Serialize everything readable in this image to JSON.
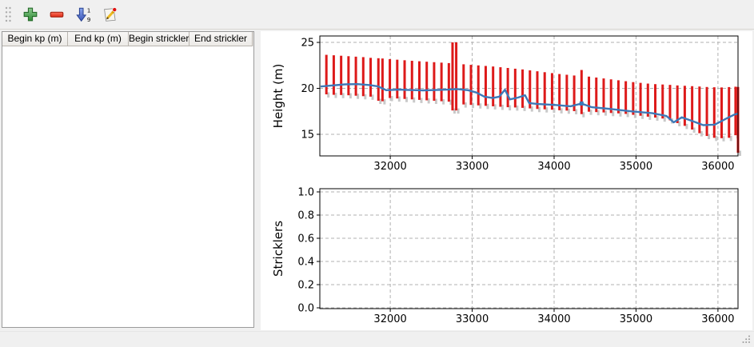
{
  "window": {
    "bg": "#f0f0f0"
  },
  "toolbar": {
    "buttons": [
      {
        "id": "add-row",
        "icon": "plus-icon"
      },
      {
        "id": "remove-row",
        "icon": "minus-icon"
      },
      {
        "id": "sort-rows",
        "icon": "sort-numeric-icon"
      },
      {
        "id": "edit-row",
        "icon": "edit-icon"
      }
    ]
  },
  "table": {
    "columns": [
      "Begin kp (m)",
      "End kp (m)",
      "Begin strickler",
      "End strickler"
    ],
    "rows": []
  },
  "colors": {
    "bar_red": "#dd1a1a",
    "bar_shadow": "#c9c9c9",
    "line_blue": "#3d79b8",
    "grid_gray": "#b0b0b0",
    "icon_green": "#3f9a43",
    "icon_red": "#ee4433",
    "icon_blue": "#4a6fd4",
    "icon_yellow": "#eebb22"
  },
  "chart_data": [
    {
      "type": "bar",
      "title": "",
      "xlabel": "",
      "ylabel": "Height (m)",
      "xlim": [
        31140,
        36245
      ],
      "ylim": [
        12.65,
        25.7
      ],
      "xticks": [
        32000,
        33000,
        34000,
        35000,
        36000
      ],
      "xtick_labels": [
        "32000",
        "33000",
        "34000",
        "35000",
        "36000"
      ],
      "yticks": [
        15,
        20,
        25
      ],
      "ytick_labels": [
        "15",
        "20",
        "25"
      ],
      "grid": true,
      "legend": null,
      "bar_color": "#dd1a1a",
      "shadow_color": "#c9c9c9",
      "line_color": "#3d79b8",
      "bars": [
        [
          31220,
          19.35,
          23.65
        ],
        [
          31310,
          19.3,
          23.6
        ],
        [
          31400,
          19.28,
          23.55
        ],
        [
          31490,
          19.25,
          23.5
        ],
        [
          31580,
          19.2,
          23.45
        ],
        [
          31670,
          19.15,
          23.4
        ],
        [
          31760,
          19.1,
          23.32
        ],
        [
          31855,
          18.65,
          23.28
        ],
        [
          31905,
          18.6,
          23.25
        ],
        [
          31995,
          18.95,
          23.18
        ],
        [
          32085,
          18.9,
          23.12
        ],
        [
          32175,
          18.85,
          23.06
        ],
        [
          32265,
          18.8,
          23.0
        ],
        [
          32355,
          18.75,
          22.95
        ],
        [
          32445,
          18.7,
          22.9
        ],
        [
          32535,
          18.65,
          22.85
        ],
        [
          32625,
          18.6,
          22.8
        ],
        [
          32715,
          18.55,
          22.75
        ],
        [
          32760,
          17.6,
          25.0
        ],
        [
          32805,
          17.6,
          25.0
        ],
        [
          32895,
          18.25,
          22.62
        ],
        [
          32985,
          18.2,
          22.56
        ],
        [
          33075,
          18.15,
          22.5
        ],
        [
          33165,
          18.1,
          22.44
        ],
        [
          33255,
          18.05,
          22.38
        ],
        [
          33345,
          18.0,
          22.3
        ],
        [
          33435,
          17.95,
          22.22
        ],
        [
          33525,
          17.92,
          22.14
        ],
        [
          33615,
          17.88,
          22.06
        ],
        [
          33705,
          17.82,
          21.96
        ],
        [
          33795,
          17.76,
          21.86
        ],
        [
          33885,
          17.72,
          21.76
        ],
        [
          33975,
          17.68,
          21.66
        ],
        [
          34065,
          17.62,
          21.56
        ],
        [
          34155,
          17.58,
          21.48
        ],
        [
          34245,
          17.52,
          21.4
        ],
        [
          34335,
          17.2,
          22.0
        ],
        [
          34425,
          17.46,
          21.28
        ],
        [
          34515,
          17.42,
          21.18
        ],
        [
          34605,
          17.38,
          21.08
        ],
        [
          34695,
          17.32,
          20.98
        ],
        [
          34785,
          17.28,
          20.88
        ],
        [
          34875,
          17.22,
          20.78
        ],
        [
          34965,
          17.12,
          20.68
        ],
        [
          35055,
          17.02,
          20.6
        ],
        [
          35145,
          16.92,
          20.52
        ],
        [
          35235,
          16.82,
          20.46
        ],
        [
          35325,
          16.72,
          20.42
        ],
        [
          35415,
          16.52,
          20.38
        ],
        [
          35505,
          16.22,
          20.32
        ],
        [
          35595,
          15.92,
          20.28
        ],
        [
          35685,
          15.52,
          20.24
        ],
        [
          35775,
          15.12,
          20.2
        ],
        [
          35865,
          14.82,
          20.15
        ],
        [
          35955,
          14.62,
          20.12
        ],
        [
          36045,
          14.58,
          20.1
        ],
        [
          36135,
          14.62,
          20.14
        ],
        [
          36215,
          14.9,
          20.18
        ],
        [
          36245,
          13.0,
          20.15
        ]
      ],
      "line": [
        [
          31150,
          20.2
        ],
        [
          31300,
          20.32
        ],
        [
          31450,
          20.44
        ],
        [
          31600,
          20.46
        ],
        [
          31750,
          20.36
        ],
        [
          31850,
          20.22
        ],
        [
          31950,
          19.8
        ],
        [
          32100,
          19.86
        ],
        [
          32250,
          19.82
        ],
        [
          32400,
          19.78
        ],
        [
          32550,
          19.82
        ],
        [
          32700,
          19.86
        ],
        [
          32820,
          19.92
        ],
        [
          32950,
          19.8
        ],
        [
          33050,
          19.55
        ],
        [
          33150,
          19.1
        ],
        [
          33250,
          18.95
        ],
        [
          33330,
          19.1
        ],
        [
          33400,
          19.85
        ],
        [
          33460,
          18.8
        ],
        [
          33560,
          19.0
        ],
        [
          33645,
          19.25
        ],
        [
          33695,
          18.4
        ],
        [
          33800,
          18.3
        ],
        [
          34000,
          18.2
        ],
        [
          34200,
          18.05
        ],
        [
          34335,
          18.35
        ],
        [
          34460,
          17.95
        ],
        [
          34700,
          17.75
        ],
        [
          34950,
          17.5
        ],
        [
          35200,
          17.3
        ],
        [
          35370,
          17.0
        ],
        [
          35460,
          16.3
        ],
        [
          35560,
          16.85
        ],
        [
          35700,
          16.4
        ],
        [
          35820,
          16.0
        ],
        [
          35960,
          16.05
        ],
        [
          36100,
          16.7
        ],
        [
          36200,
          17.15
        ],
        [
          36245,
          17.25
        ]
      ],
      "marker_point": [
        34335,
        18.35
      ]
    },
    {
      "type": "line",
      "title": "",
      "xlabel": "",
      "ylabel": "Stricklers",
      "xlim": [
        31140,
        36245
      ],
      "ylim": [
        0.0,
        1.0
      ],
      "xticks": [
        32000,
        33000,
        34000,
        35000,
        36000
      ],
      "xtick_labels": [
        "32000",
        "33000",
        "34000",
        "35000",
        "36000"
      ],
      "yticks": [
        0.0,
        0.2,
        0.4,
        0.6,
        0.8,
        1.0
      ],
      "ytick_labels": [
        "0.0",
        "0.2",
        "0.4",
        "0.6",
        "0.8",
        "1.0"
      ],
      "grid": true,
      "legend": null,
      "series": []
    }
  ]
}
